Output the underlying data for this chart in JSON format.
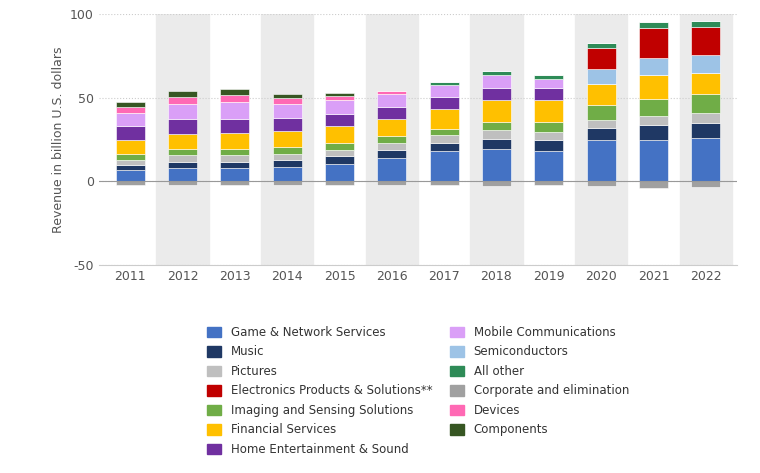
{
  "years": [
    2011,
    2012,
    2013,
    2014,
    2015,
    2016,
    2017,
    2018,
    2019,
    2020,
    2021,
    2022
  ],
  "segment_order": [
    "Game & Network Services",
    "Music",
    "Pictures",
    "Imaging and Sensing Solutions",
    "Financial Services",
    "Home Entertainment & Sound",
    "Mobile Communications",
    "Semiconductors",
    "Electronics Products & Solutions**",
    "All other",
    "Devices",
    "Components",
    "Corporate and elimination"
  ],
  "colors": {
    "Game & Network Services": "#4472C4",
    "Music": "#1F3864",
    "Pictures": "#BFBFBF",
    "Imaging and Sensing Solutions": "#70AD47",
    "Financial Services": "#FFC000",
    "Home Entertainment & Sound": "#7030A0",
    "Mobile Communications": "#DA9FF7",
    "Semiconductors": "#9DC3E6",
    "Electronics Products & Solutions**": "#C00000",
    "All other": "#2E8B57",
    "Devices": "#FF69B4",
    "Components": "#375623",
    "Corporate and elimination": "#A0A0A0"
  },
  "values": {
    "Game & Network Services": [
      6.5,
      8.0,
      8.0,
      8.5,
      10.5,
      14.0,
      18.0,
      19.5,
      18.0,
      24.5,
      25.0,
      26.0
    ],
    "Music": [
      3.0,
      3.5,
      3.5,
      4.0,
      4.5,
      5.0,
      5.0,
      6.0,
      7.0,
      7.5,
      8.5,
      9.0
    ],
    "Pictures": [
      3.5,
      4.0,
      4.0,
      4.0,
      4.0,
      4.0,
      4.5,
      5.0,
      4.5,
      4.5,
      5.5,
      6.0
    ],
    "Imaging and Sensing Solutions": [
      3.5,
      4.0,
      4.0,
      4.0,
      4.0,
      4.0,
      4.0,
      5.0,
      6.0,
      9.0,
      10.5,
      11.0
    ],
    "Financial Services": [
      8.5,
      9.0,
      9.5,
      9.5,
      10.0,
      10.5,
      12.0,
      13.0,
      13.0,
      13.0,
      14.0,
      13.0
    ],
    "Home Entertainment & Sound": [
      8.0,
      8.5,
      8.5,
      8.0,
      7.5,
      7.0,
      7.0,
      7.5,
      7.5,
      0.0,
      0.0,
      0.0
    ],
    "Mobile Communications": [
      8.0,
      9.5,
      10.0,
      8.5,
      8.0,
      7.5,
      7.0,
      7.5,
      5.0,
      0.0,
      0.0,
      0.0
    ],
    "Semiconductors": [
      0.0,
      0.0,
      0.0,
      0.0,
      0.0,
      0.0,
      0.0,
      0.0,
      0.0,
      8.5,
      10.0,
      10.5
    ],
    "Electronics Products & Solutions**": [
      0.0,
      0.0,
      0.0,
      0.0,
      0.0,
      0.0,
      0.0,
      0.0,
      0.0,
      13.0,
      18.0,
      17.0
    ],
    "All other": [
      0.0,
      0.0,
      0.0,
      0.0,
      0.0,
      0.0,
      2.0,
      2.5,
      2.5,
      3.0,
      4.0,
      3.5
    ],
    "Devices": [
      3.5,
      4.0,
      4.0,
      3.5,
      2.5,
      2.0,
      0.0,
      0.0,
      0.0,
      0.0,
      0.0,
      0.0
    ],
    "Components": [
      3.0,
      3.5,
      3.5,
      2.5,
      2.0,
      0.0,
      0.0,
      0.0,
      0.0,
      0.0,
      0.0,
      0.0
    ],
    "Corporate and elimination": [
      -2.0,
      -2.5,
      -2.5,
      -2.0,
      -2.0,
      -2.0,
      -2.5,
      -3.0,
      -2.5,
      -3.0,
      -4.0,
      -3.5
    ]
  },
  "legend_order": [
    [
      "Game & Network Services",
      "Music"
    ],
    [
      "Pictures",
      "Electronics Products & Solutions**"
    ],
    [
      "Imaging and Sensing Solutions",
      "Financial Services"
    ],
    [
      "Home Entertainment & Sound",
      "Mobile Communications"
    ],
    [
      "Semiconductors",
      "All other"
    ],
    [
      "Corporate and elimination",
      "Devices"
    ],
    [
      "Components",
      ""
    ]
  ],
  "ylabel": "Revenue in billion U.S. dollars",
  "ylim": [
    -50,
    100
  ],
  "yticks": [
    -50,
    0,
    50,
    100
  ],
  "shaded_idx": [
    1,
    3,
    5,
    7,
    9,
    11
  ]
}
